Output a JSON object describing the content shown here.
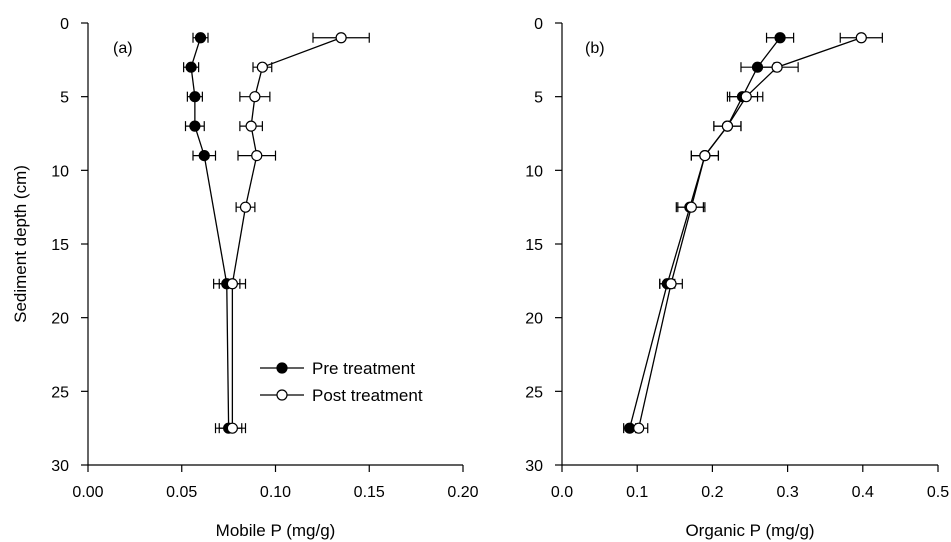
{
  "chart_data": [
    {
      "type": "line",
      "panel_label": "(a)",
      "xlabel": "Mobile P (mg/g)",
      "ylabel": "Sediment depth (cm)",
      "xlim": [
        0,
        0.2
      ],
      "ylim": [
        30,
        0
      ],
      "y_inverted": true,
      "x_ticks": [
        0.0,
        0.05,
        0.1,
        0.15,
        0.2
      ],
      "x_tick_labels": [
        "0.00",
        "0.05",
        "0.10",
        "0.15",
        "0.20"
      ],
      "y_ticks": [
        0,
        5,
        10,
        15,
        20,
        25,
        30
      ],
      "y_tick_labels": [
        "0",
        "5",
        "10",
        "15",
        "20",
        "25",
        "30"
      ],
      "legend": {
        "position": "lower-right"
      },
      "series": [
        {
          "name": "Pre treatment",
          "marker": "filled-circle",
          "color": "#000000",
          "points": [
            {
              "depth": 1,
              "value": 0.06,
              "err": 0.004
            },
            {
              "depth": 3,
              "value": 0.055,
              "err": 0.004
            },
            {
              "depth": 5,
              "value": 0.057,
              "err": 0.004
            },
            {
              "depth": 7,
              "value": 0.057,
              "err": 0.005
            },
            {
              "depth": 9,
              "value": 0.062,
              "err": 0.006
            },
            {
              "depth": 17.7,
              "value": 0.074,
              "err": 0.007
            },
            {
              "depth": 27.5,
              "value": 0.075,
              "err": 0.007
            }
          ]
        },
        {
          "name": "Post treatment",
          "marker": "open-circle",
          "color": "#000000",
          "points": [
            {
              "depth": 1,
              "value": 0.135,
              "err": 0.015
            },
            {
              "depth": 3,
              "value": 0.093,
              "err": 0.005
            },
            {
              "depth": 5,
              "value": 0.089,
              "err": 0.008
            },
            {
              "depth": 7,
              "value": 0.087,
              "err": 0.006
            },
            {
              "depth": 9,
              "value": 0.09,
              "err": 0.01
            },
            {
              "depth": 12.5,
              "value": 0.084,
              "err": 0.005
            },
            {
              "depth": 17.7,
              "value": 0.077,
              "err": 0.007
            },
            {
              "depth": 27.5,
              "value": 0.077,
              "err": 0.007
            }
          ]
        }
      ]
    },
    {
      "type": "line",
      "panel_label": "(b)",
      "xlabel": "Organic P (mg/g)",
      "ylabel": "",
      "xlim": [
        0,
        0.5
      ],
      "ylim": [
        30,
        0
      ],
      "y_inverted": true,
      "x_ticks": [
        0.0,
        0.1,
        0.2,
        0.3,
        0.4,
        0.5
      ],
      "x_tick_labels": [
        "0.0",
        "0.1",
        "0.2",
        "0.3",
        "0.4",
        "0.5"
      ],
      "y_ticks": [
        0,
        5,
        10,
        15,
        20,
        25,
        30
      ],
      "y_tick_labels": [
        "0",
        "5",
        "10",
        "15",
        "20",
        "25",
        "30"
      ],
      "series": [
        {
          "name": "Pre treatment",
          "marker": "filled-circle",
          "color": "#000000",
          "points": [
            {
              "depth": 1,
              "value": 0.29,
              "err": 0.018
            },
            {
              "depth": 3,
              "value": 0.26,
              "err": 0.022
            },
            {
              "depth": 5,
              "value": 0.24,
              "err": 0.02
            },
            {
              "depth": 7,
              "value": 0.22,
              "err": 0.018
            },
            {
              "depth": 9,
              "value": 0.19,
              "err": 0.018
            },
            {
              "depth": 12.5,
              "value": 0.17,
              "err": 0.018
            },
            {
              "depth": 17.7,
              "value": 0.14,
              "err": 0.01
            },
            {
              "depth": 27.5,
              "value": 0.09,
              "err": 0.008
            }
          ]
        },
        {
          "name": "Post treatment",
          "marker": "open-circle",
          "color": "#000000",
          "points": [
            {
              "depth": 1,
              "value": 0.398,
              "err": 0.028
            },
            {
              "depth": 3,
              "value": 0.286,
              "err": 0.028
            },
            {
              "depth": 5,
              "value": 0.245,
              "err": 0.022
            },
            {
              "depth": 7,
              "value": 0.22,
              "err": 0.018
            },
            {
              "depth": 9,
              "value": 0.19,
              "err": 0.018
            },
            {
              "depth": 12.5,
              "value": 0.172,
              "err": 0.018
            },
            {
              "depth": 17.7,
              "value": 0.145,
              "err": 0.015
            },
            {
              "depth": 27.5,
              "value": 0.102,
              "err": 0.012
            }
          ]
        }
      ]
    }
  ]
}
